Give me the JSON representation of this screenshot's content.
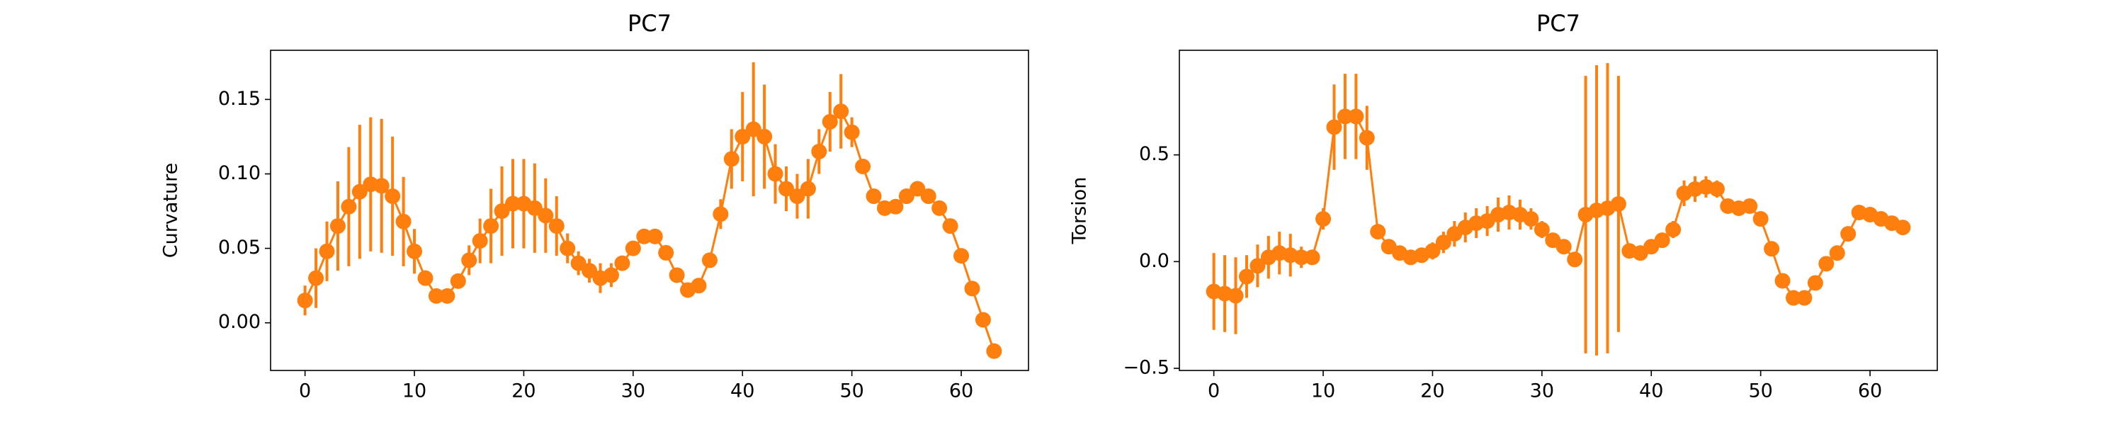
{
  "chart_data": [
    {
      "type": "line",
      "title": "PC7",
      "y_label": "Curvature",
      "x": [
        0,
        1,
        2,
        3,
        4,
        5,
        6,
        7,
        8,
        9,
        10,
        11,
        12,
        13,
        14,
        15,
        16,
        17,
        18,
        19,
        20,
        21,
        22,
        23,
        24,
        25,
        26,
        27,
        28,
        29,
        30,
        31,
        32,
        33,
        34,
        35,
        36,
        37,
        38,
        39,
        40,
        41,
        42,
        43,
        44,
        45,
        46,
        47,
        48,
        49,
        50,
        51,
        52,
        53,
        54,
        55,
        56,
        57,
        58,
        59,
        60,
        61,
        62,
        63
      ],
      "series": [
        {
          "color": "#ff7f0e",
          "values": [
            0.015,
            0.03,
            0.048,
            0.065,
            0.078,
            0.088,
            0.093,
            0.092,
            0.085,
            0.068,
            0.048,
            0.03,
            0.018,
            0.018,
            0.028,
            0.042,
            0.055,
            0.065,
            0.075,
            0.08,
            0.08,
            0.077,
            0.072,
            0.065,
            0.05,
            0.04,
            0.035,
            0.03,
            0.032,
            0.04,
            0.05,
            0.058,
            0.058,
            0.047,
            0.032,
            0.022,
            0.025,
            0.042,
            0.073,
            0.11,
            0.125,
            0.13,
            0.125,
            0.1,
            0.09,
            0.085,
            0.09,
            0.115,
            0.135,
            0.142,
            0.128,
            0.105,
            0.085,
            0.077,
            0.078,
            0.085,
            0.09,
            0.085,
            0.077,
            0.065,
            0.045,
            0.023,
            0.002,
            -0.019
          ],
          "errors": [
            0.01,
            0.02,
            0.02,
            0.03,
            0.04,
            0.045,
            0.045,
            0.045,
            0.04,
            0.03,
            0.015,
            0.005,
            0.003,
            0.003,
            0.005,
            0.01,
            0.015,
            0.025,
            0.03,
            0.03,
            0.03,
            0.03,
            0.025,
            0.02,
            0.01,
            0.008,
            0.008,
            0.01,
            0.008,
            0.005,
            0.005,
            0.003,
            0.003,
            0.003,
            0.003,
            0.003,
            0.005,
            0.005,
            0.01,
            0.02,
            0.03,
            0.045,
            0.035,
            0.02,
            0.015,
            0.015,
            0.02,
            0.015,
            0.02,
            0.025,
            0.01,
            0.005,
            0.003,
            0.003,
            0.003,
            0.003,
            0.003,
            0.003,
            0.003,
            0.003,
            0.003,
            0.003,
            0.003,
            0.003
          ]
        }
      ],
      "xlim": [
        -3.15,
        66.15
      ],
      "xticks": [
        0,
        10,
        20,
        30,
        40,
        50,
        60
      ],
      "ylim": [
        -0.032,
        0.183
      ],
      "yticks": [
        {
          "value": 0,
          "label": "0.00"
        },
        0.05,
        {
          "value": 0.1,
          "label": "0.10"
        },
        0.15
      ]
    },
    {
      "type": "line",
      "title": "PC7",
      "y_label": "Torsion",
      "x": [
        0,
        1,
        2,
        3,
        4,
        5,
        6,
        7,
        8,
        9,
        10,
        11,
        12,
        13,
        14,
        15,
        16,
        17,
        18,
        19,
        20,
        21,
        22,
        23,
        24,
        25,
        26,
        27,
        28,
        29,
        30,
        31,
        32,
        33,
        34,
        35,
        36,
        37,
        38,
        39,
        40,
        41,
        42,
        43,
        44,
        45,
        46,
        47,
        48,
        49,
        50,
        51,
        52,
        53,
        54,
        55,
        56,
        57,
        58,
        59,
        60,
        61,
        62,
        63
      ],
      "series": [
        {
          "color": "#ff7f0e",
          "values": [
            -0.14,
            -0.15,
            -0.16,
            -0.07,
            -0.02,
            0.02,
            0.04,
            0.03,
            0.02,
            0.02,
            0.2,
            0.63,
            0.68,
            0.68,
            0.58,
            0.14,
            0.07,
            0.04,
            0.02,
            0.03,
            0.05,
            0.09,
            0.13,
            0.16,
            0.18,
            0.19,
            0.22,
            0.23,
            0.22,
            0.2,
            0.15,
            0.1,
            0.07,
            0.01,
            0.22,
            0.24,
            0.25,
            0.27,
            0.05,
            0.04,
            0.07,
            0.1,
            0.15,
            0.32,
            0.34,
            0.35,
            0.34,
            0.26,
            0.25,
            0.26,
            0.2,
            0.06,
            -0.09,
            -0.17,
            -0.17,
            -0.1,
            -0.01,
            0.04,
            0.13,
            0.23,
            0.22,
            0.2,
            0.18,
            0.16
          ],
          "errors": [
            0.18,
            0.18,
            0.18,
            0.1,
            0.1,
            0.1,
            0.1,
            0.1,
            0.05,
            0.03,
            0.05,
            0.2,
            0.2,
            0.2,
            0.15,
            0.03,
            0.03,
            0.03,
            0.03,
            0.03,
            0.04,
            0.05,
            0.06,
            0.07,
            0.07,
            0.07,
            0.08,
            0.08,
            0.07,
            0.05,
            0.04,
            0.03,
            0.03,
            0.03,
            0.65,
            0.68,
            0.68,
            0.6,
            0.03,
            0.03,
            0.03,
            0.03,
            0.04,
            0.06,
            0.06,
            0.05,
            0.04,
            0.03,
            0.03,
            0.03,
            0.03,
            0.03,
            0.03,
            0.03,
            0.03,
            0.03,
            0.03,
            0.03,
            0.03,
            0.03,
            0.03,
            0.03,
            0.03,
            0.03
          ]
        }
      ],
      "xlim": [
        -3.15,
        66.15
      ],
      "xticks": [
        0,
        10,
        20,
        30,
        40,
        50,
        60
      ],
      "ylim": [
        -0.51,
        0.99
      ],
      "yticks": [
        {
          "value": -0.5,
          "label": "−0.5"
        },
        {
          "value": 0,
          "label": "0.0"
        },
        0.5
      ]
    }
  ]
}
